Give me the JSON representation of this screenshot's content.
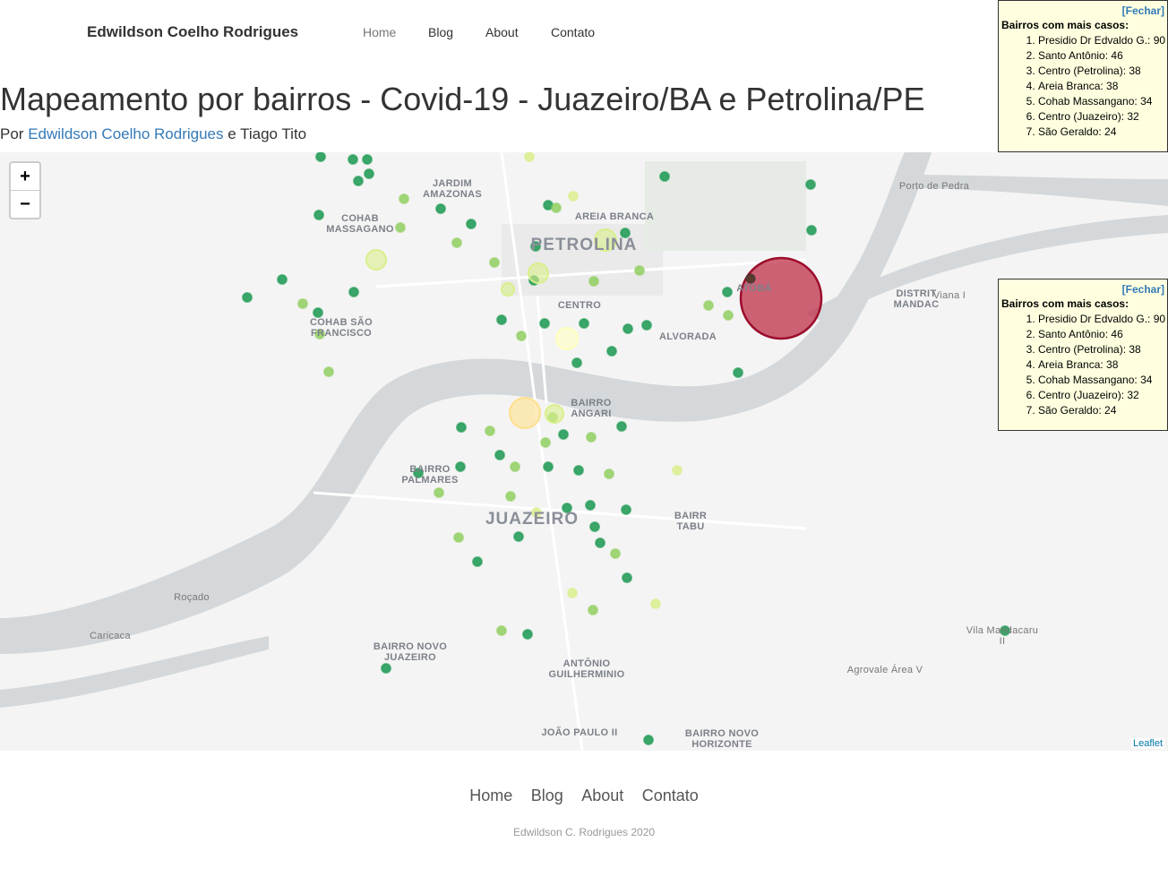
{
  "nav": {
    "brand": "Edwildson Coelho Rodrigues",
    "links": [
      "Home",
      "Blog",
      "About",
      "Contato"
    ]
  },
  "header": {
    "title": "Mapeamento por bairros - Covid-19 - Juazeiro/BA e Petrolina/PE",
    "byline_prefix": "Por",
    "author": "Edwildson Coelho Rodrigues",
    "byline_suffix": "e Tiago Tito"
  },
  "map": {
    "zoom": [
      "+",
      "−"
    ],
    "attribution": "Leaflet",
    "labels": [
      {
        "lines": [
          "JARDIM",
          "AMAZONAS"
        ]
      },
      {
        "lines": [
          "COHAB",
          "MASSAGANO"
        ]
      },
      {
        "lines": [
          "AREIA BRANCA"
        ]
      },
      {
        "lines": [
          "PETROLINA"
        ]
      },
      {
        "lines": [
          "CENTRO"
        ]
      },
      {
        "lines": [
          "ALVORADA"
        ]
      },
      {
        "lines": [
          "COHAB SÃO",
          "FRANCISCO"
        ]
      },
      {
        "lines": [
          "ATOBÁ"
        ]
      },
      {
        "lines": [
          "Porto de Pedra"
        ]
      },
      {
        "lines": [
          "DISTRIT",
          "MANDAC"
        ]
      },
      {
        "lines": [
          "Viana I"
        ]
      },
      {
        "lines": [
          "BAIRRO",
          "ANGARI"
        ]
      },
      {
        "lines": [
          "BAIRRO",
          "PALMARES"
        ]
      },
      {
        "lines": [
          "JUAZEIRO"
        ]
      },
      {
        "lines": [
          "BAIRR",
          "TABU"
        ]
      },
      {
        "lines": [
          "Roçado"
        ]
      },
      {
        "lines": [
          "Caricaca"
        ]
      },
      {
        "lines": [
          "BAIRRO NOVO",
          "JUAZEIRO"
        ]
      },
      {
        "lines": [
          "ANTÔNIO",
          "GUILHERMINIO"
        ]
      },
      {
        "lines": [
          "Vila Mandacaru",
          "II"
        ]
      },
      {
        "lines": [
          "Agrovale Área V"
        ]
      },
      {
        "lines": [
          "JOÃO PAULO II"
        ]
      },
      {
        "lines": [
          "BAIRRO NOVO",
          "HORIZONTE"
        ]
      }
    ]
  },
  "popups": [
    {
      "close": "[Fechar]",
      "heading": "Bairros com mais casos:",
      "items": [
        "Presidio Dr Edvaldo G.: 90",
        "Santo Antônio: 46",
        "Centro (Petrolina): 38",
        "Areia Branca: 38",
        "Cohab Massangano: 34",
        "Centro (Juazeiro): 32",
        "São Geraldo: 24"
      ]
    },
    {
      "close": "[Fechar]",
      "heading": "Bairros com mais casos:",
      "items": [
        "Presidio Dr Edvaldo G.: 90",
        "Santo Antônio: 46",
        "Centro (Petrolina): 38",
        "Areia Branca: 38",
        "Cohab Massangano: 34",
        "Centro (Juazeiro): 32",
        "São Geraldo: 24"
      ]
    }
  ],
  "footer": {
    "links": [
      "Home",
      "Blog",
      "About",
      "Contato"
    ],
    "copyright": "Edwildson C. Rodrigues 2020"
  }
}
